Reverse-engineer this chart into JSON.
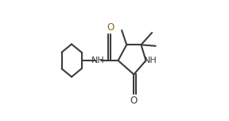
{
  "bg_color": "#ffffff",
  "line_color": "#3d3d3d",
  "line_width": 1.5,
  "font_size": 8.0,
  "figsize": [
    2.88,
    1.52
  ],
  "dpi": 100,
  "xlim": [
    -0.05,
    1.05
  ],
  "ylim": [
    0.0,
    1.0
  ],
  "O_color_amide": "#8B6914",
  "O_color_lactam": "#3d3d3d",
  "NH_color": "#3d3d3d"
}
